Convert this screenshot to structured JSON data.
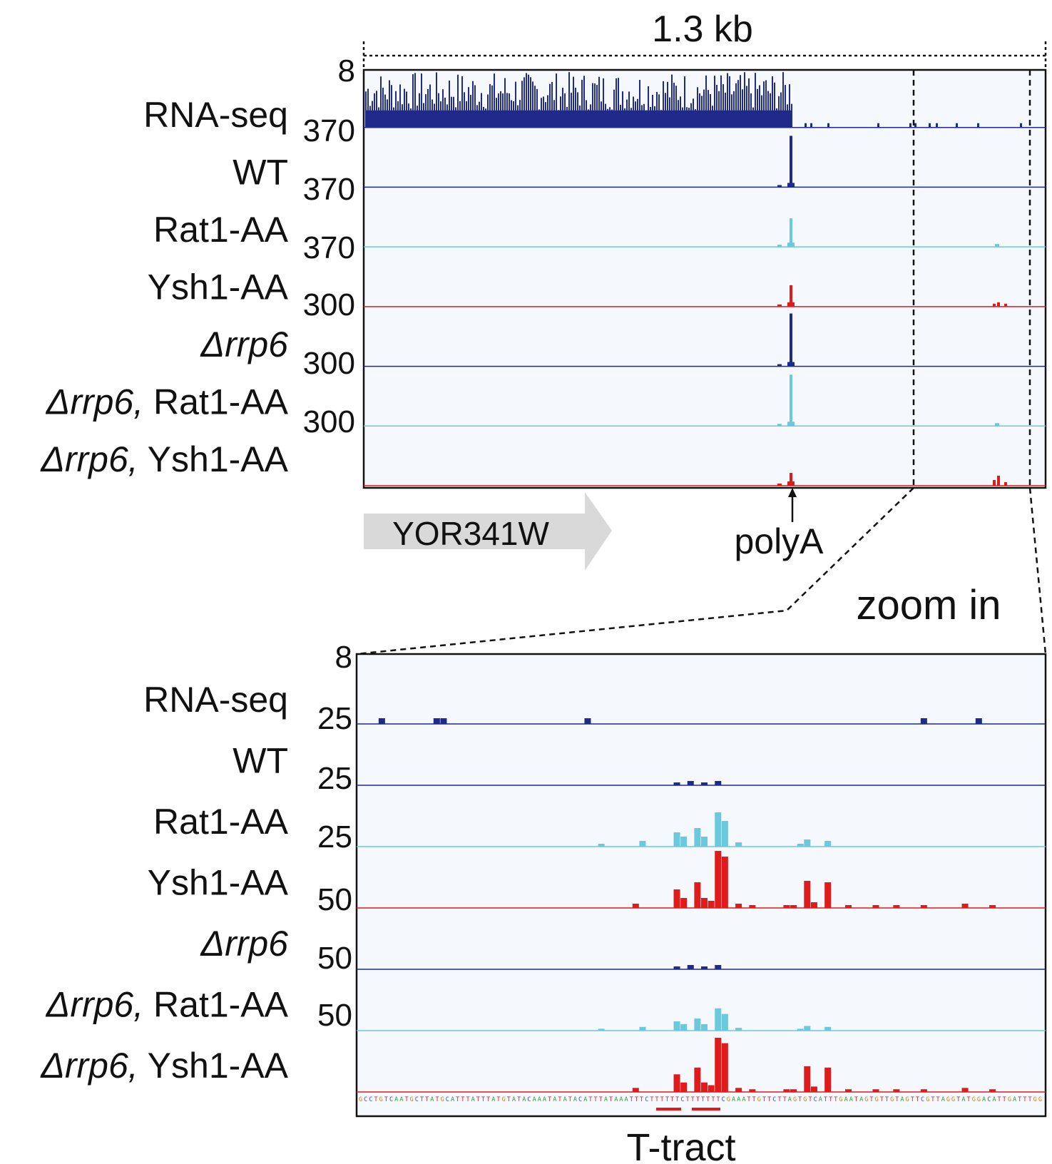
{
  "top_panel": {
    "scale_label": "1.3 kb",
    "tracks": [
      {
        "label_italic": "",
        "label_plain": "RNA-seq",
        "scale": "8",
        "color": "#1f2a8a"
      },
      {
        "label_italic": "",
        "label_plain": "WT",
        "scale": "370",
        "color": "#1f2a8a"
      },
      {
        "label_italic": "",
        "label_plain": "Rat1-AA",
        "scale": "370",
        "color": "#6cc8dc"
      },
      {
        "label_italic": "",
        "label_plain": "Ysh1-AA",
        "scale": "370",
        "color": "#e01b1b"
      },
      {
        "label_italic": "Δrrp6",
        "label_plain": "",
        "scale": "300",
        "color": "#1f2a8a"
      },
      {
        "label_italic": "Δrrp6,",
        "label_plain": " Rat1-AA",
        "scale": "300",
        "color": "#6cc8dc"
      },
      {
        "label_italic": "Δrrp6,",
        "label_plain": " Ysh1-AA",
        "scale": "300",
        "color": "#e01b1b"
      }
    ],
    "gene": {
      "name": "YOR341W",
      "color": "#d9d9d9"
    },
    "polyA_label": "polyA"
  },
  "zoom_label": "zoom in",
  "bottom_panel": {
    "tracks": [
      {
        "label_italic": "",
        "label_plain": "RNA-seq",
        "scale": "8",
        "color": "#1f2a8a"
      },
      {
        "label_italic": "",
        "label_plain": "WT",
        "scale": "25",
        "color": "#1f2a8a"
      },
      {
        "label_italic": "",
        "label_plain": "Rat1-AA",
        "scale": "25",
        "color": "#6cc8dc"
      },
      {
        "label_italic": "",
        "label_plain": "Ysh1-AA",
        "scale": "25",
        "color": "#e01b1b"
      },
      {
        "label_italic": "Δrrp6",
        "label_plain": "",
        "scale": "50",
        "color": "#1f2a8a"
      },
      {
        "label_italic": "Δrrp6,",
        "label_plain": "  Rat1-AA",
        "scale": "50",
        "color": "#6cc8dc"
      },
      {
        "label_italic": "Δrrp6,",
        "label_plain": " Ysh1-AA",
        "scale": "50",
        "color": "#e01b1b"
      }
    ],
    "sequence": "GCCTGTCAATGCTTATGCATTTATTTATGTATACAAATATATACATTTATAAATTTCTTTTTTCTTTTTTTCGAAATTGTTCTTAGTGTCATTTGAATAGTGTTGTAGTTCGTTAGGTATGGACATTGATTTGG",
    "t_tract_label": "T-tract"
  },
  "colors": {
    "navy": "#1f2a8a",
    "cyan": "#6cc8dc",
    "red": "#e01b1b",
    "panel_bg": "#f5f8fc"
  }
}
